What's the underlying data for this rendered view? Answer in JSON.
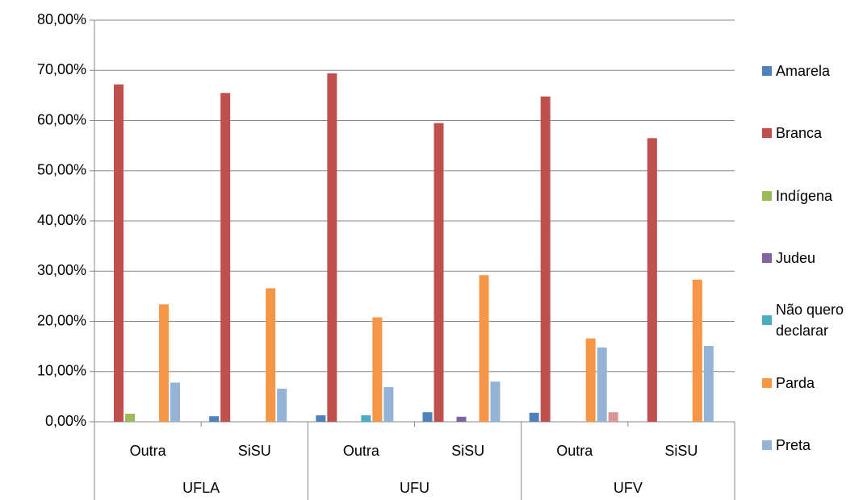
{
  "chart_data": {
    "type": "bar",
    "groups": [
      "UFLA",
      "UFU",
      "UFV"
    ],
    "categories": [
      "Outra",
      "SiSU",
      "Outra",
      "SiSU",
      "Outra",
      "SiSU"
    ],
    "series": [
      {
        "name": "Amarela",
        "color": "#4f81bd",
        "values": [
          0,
          1.1,
          1.3,
          1.9,
          1.8,
          0
        ]
      },
      {
        "name": "Branca",
        "color": "#c0504d",
        "values": [
          67.2,
          65.5,
          69.4,
          59.5,
          64.8,
          56.5
        ]
      },
      {
        "name": "Indígena",
        "color": "#9bbb59",
        "values": [
          1.6,
          0,
          0,
          0,
          0,
          0
        ]
      },
      {
        "name": "Judeu",
        "color": "#8064a2",
        "values": [
          0,
          0,
          0,
          1.0,
          0,
          0
        ]
      },
      {
        "name": "Não quero declarar",
        "color": "#4bacc6",
        "values": [
          0,
          0,
          1.3,
          0,
          0,
          0
        ]
      },
      {
        "name": "Parda",
        "color": "#f79646",
        "values": [
          23.4,
          26.6,
          20.8,
          29.2,
          16.6,
          28.3
        ]
      },
      {
        "name": "Preta",
        "color": "#95b3d7",
        "values": [
          7.8,
          6.6,
          6.9,
          8.0,
          14.8,
          15.1
        ]
      },
      {
        "color": "#da9694",
        "values": [
          0,
          0,
          0,
          0,
          1.9,
          0
        ]
      }
    ],
    "ylim": [
      0,
      80
    ],
    "yticks": [
      {
        "value": 0,
        "label": "0,00%"
      },
      {
        "value": 10,
        "label": "10,00%"
      },
      {
        "value": 20,
        "label": "20,00%"
      },
      {
        "value": 30,
        "label": "30,00%"
      },
      {
        "value": 40,
        "label": "40,00%"
      },
      {
        "value": 50,
        "label": "50,00%"
      },
      {
        "value": 60,
        "label": "60,00%"
      },
      {
        "value": 70,
        "label": "70,00%"
      },
      {
        "value": 80,
        "label": "80,00%"
      }
    ],
    "grid": true
  }
}
